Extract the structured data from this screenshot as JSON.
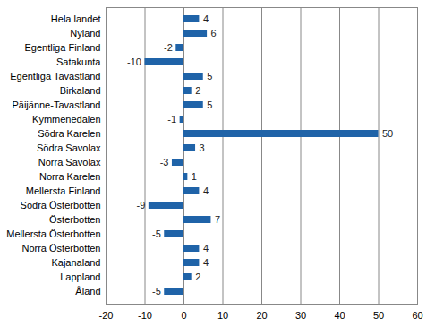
{
  "chart_data": {
    "type": "bar",
    "orientation": "horizontal",
    "categories": [
      "Hela landet",
      "Nyland",
      "Egentliga Finland",
      "Satakunta",
      "Egentliga Tavastland",
      "Birkaland",
      "Päijänne-Tavastland",
      "Kymmenedalen",
      "Södra Karelen",
      "Södra Savolax",
      "Norra Savolax",
      "Norra Karelen",
      "Mellersta Finland",
      "Södra Österbotten",
      "Österbotten",
      "Mellersta Österbotten",
      "Norra Österbotten",
      "Kajanaland",
      "Lappland",
      "Åland"
    ],
    "values": [
      4,
      6,
      -2,
      -10,
      5,
      2,
      5,
      -1,
      50,
      3,
      -3,
      1,
      4,
      -9,
      7,
      -5,
      4,
      4,
      2,
      -5
    ],
    "color": "#1f63a8",
    "xlim": [
      -20,
      60
    ],
    "xticks": [
      -20,
      -10,
      0,
      10,
      20,
      30,
      40,
      50,
      60
    ],
    "grid": true,
    "data_labels": true
  }
}
